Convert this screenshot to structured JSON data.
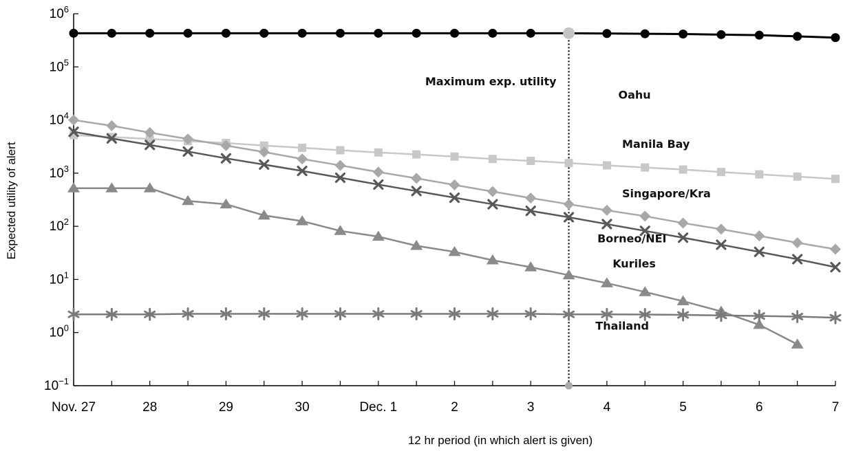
{
  "chart_data": {
    "type": "line",
    "y_scale": "log",
    "ylim": [
      0.1,
      1000000
    ],
    "y_ticks": [
      {
        "value": 0.1,
        "base": "10",
        "exp": "−1"
      },
      {
        "value": 1,
        "base": "10",
        "exp": "0"
      },
      {
        "value": 10,
        "base": "10",
        "exp": "1"
      },
      {
        "value": 100,
        "base": "10",
        "exp": "2"
      },
      {
        "value": 1000,
        "base": "10",
        "exp": "3"
      },
      {
        "value": 10000,
        "base": "10",
        "exp": "4"
      },
      {
        "value": 100000,
        "base": "10",
        "exp": "5"
      },
      {
        "value": 1000000,
        "base": "10",
        "exp": "6"
      }
    ],
    "xlabel": "12 hr period (in which alert is given)",
    "ylabel": "Expected utility of alert",
    "x_ticks": [
      "Nov. 27",
      "",
      "28",
      "",
      "29",
      "",
      "30",
      "",
      "Dec. 1",
      "",
      "2",
      "",
      "3",
      "",
      "4",
      "",
      "5",
      "",
      "6",
      "",
      "7"
    ],
    "grid": false,
    "annotation": {
      "label": "Maximum exp. utility",
      "period_index": 13,
      "style": "dotted vertical line"
    },
    "series": [
      {
        "name": "Oahu",
        "color": "#000000",
        "marker": "circle",
        "values": [
          430000,
          430000,
          430000,
          430000,
          430000,
          430000,
          430000,
          430000,
          430000,
          430000,
          430000,
          430000,
          430000,
          430000,
          425000,
          420000,
          415000,
          405000,
          395000,
          375000,
          355000
        ]
      },
      {
        "name": "Manila Bay",
        "color": "#c8c8c8",
        "marker": "square",
        "values": [
          5200,
          4800,
          4400,
          4000,
          3700,
          3300,
          3000,
          2700,
          2450,
          2250,
          2050,
          1850,
          1700,
          1550,
          1400,
          1280,
          1170,
          1050,
          950,
          860,
          780
        ]
      },
      {
        "name": "Singapore/Kra",
        "color": "#a8a8a8",
        "marker": "diamond",
        "values": [
          10000,
          7800,
          5800,
          4400,
          3300,
          2500,
          1850,
          1400,
          1050,
          800,
          600,
          450,
          340,
          260,
          200,
          155,
          115,
          88,
          66,
          49,
          37
        ]
      },
      {
        "name": "Borneo/NEI",
        "color": "#585858",
        "marker": "x",
        "values": [
          6000,
          4500,
          3400,
          2550,
          1900,
          1450,
          1100,
          820,
          610,
          460,
          345,
          260,
          195,
          148,
          110,
          82,
          61,
          45,
          33,
          24,
          17
        ]
      },
      {
        "name": "Kuriles",
        "color": "#8a8a8a",
        "marker": "triangle",
        "values": [
          520,
          520,
          520,
          300,
          260,
          160,
          125,
          82,
          64,
          43,
          33,
          23,
          17,
          12,
          8.5,
          5.8,
          3.9,
          2.5,
          1.4,
          0.6,
          null
        ]
      },
      {
        "name": "Thailand",
        "color": "#7a7a7a",
        "marker": "star",
        "values": [
          2.2,
          2.2,
          2.2,
          2.25,
          2.25,
          2.25,
          2.25,
          2.25,
          2.25,
          2.25,
          2.25,
          2.25,
          2.25,
          2.2,
          2.2,
          2.18,
          2.15,
          2.1,
          2.05,
          2.0,
          1.9
        ]
      }
    ]
  }
}
